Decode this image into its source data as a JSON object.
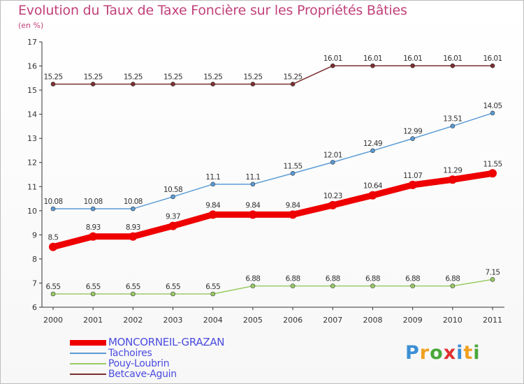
{
  "header": {
    "title": "Evolution du Taux de Taxe Foncière sur les Propriétés Bâties",
    "unit": "(en %)"
  },
  "chart_data": {
    "type": "line",
    "title": "Evolution du Taux de Taxe Foncière sur les Propriétés Bâties",
    "ylabel": "(en %)",
    "x": [
      "2000",
      "2001",
      "2002",
      "2003",
      "2004",
      "2005",
      "2006",
      "2007",
      "2008",
      "2009",
      "2010",
      "2011"
    ],
    "ylim": [
      6,
      17
    ],
    "yticks": [
      "6",
      "7",
      "8",
      "9",
      "10",
      "11",
      "12",
      "13",
      "14",
      "15",
      "16",
      "17"
    ],
    "grid": false,
    "legend_position": "bottom-left",
    "series": [
      {
        "name": "MONCORNEIL-GRAZAN",
        "color": "#ee0000",
        "values": [
          8.5,
          8.93,
          8.93,
          9.37,
          9.84,
          9.84,
          9.84,
          10.23,
          10.64,
          11.07,
          11.29,
          11.55
        ],
        "labels": [
          "8.5",
          "8.93",
          "8.93",
          "9.37",
          "9.84",
          "9.84",
          "9.84",
          "10.23",
          "10.64",
          "11.07",
          "11.29",
          "11.55"
        ]
      },
      {
        "name": "Tachoires",
        "color": "#5b9bd5",
        "values": [
          10.08,
          10.08,
          10.08,
          10.58,
          11.1,
          11.1,
          11.55,
          12.01,
          12.49,
          12.99,
          13.51,
          14.05
        ],
        "labels": [
          "10.08",
          "10.08",
          "10.08",
          "10.58",
          "11.1",
          "11.1",
          "11.55",
          "12.01",
          "12.49",
          "12.99",
          "13.51",
          "14.05"
        ]
      },
      {
        "name": "Pouy-Loubrin",
        "color": "#99cc66",
        "values": [
          6.55,
          6.55,
          6.55,
          6.55,
          6.55,
          6.88,
          6.88,
          6.88,
          6.88,
          6.88,
          6.88,
          7.15
        ],
        "labels": [
          "6.55",
          "6.55",
          "6.55",
          "6.55",
          "6.55",
          "6.88",
          "6.88",
          "6.88",
          "6.88",
          "6.88",
          "6.88",
          "7.15"
        ]
      },
      {
        "name": "Betcave-Aguin",
        "color": "#7b2f2f",
        "values": [
          15.25,
          15.25,
          15.25,
          15.25,
          15.25,
          15.25,
          15.25,
          16.01,
          16.01,
          16.01,
          16.01,
          16.01
        ],
        "labels": [
          "15.25",
          "15.25",
          "15.25",
          "15.25",
          "15.25",
          "15.25",
          "15.25",
          "16.01",
          "16.01",
          "16.01",
          "16.01",
          "16.01"
        ]
      }
    ]
  },
  "logo": {
    "letters": [
      "P",
      "r",
      "o",
      "x",
      "i",
      "t",
      "i"
    ],
    "colors": [
      "#3b8fd6",
      "#f0a020",
      "#4aa83a",
      "#e03030",
      "#3b8fd6",
      "#f0a020",
      "#4aa83a"
    ]
  }
}
